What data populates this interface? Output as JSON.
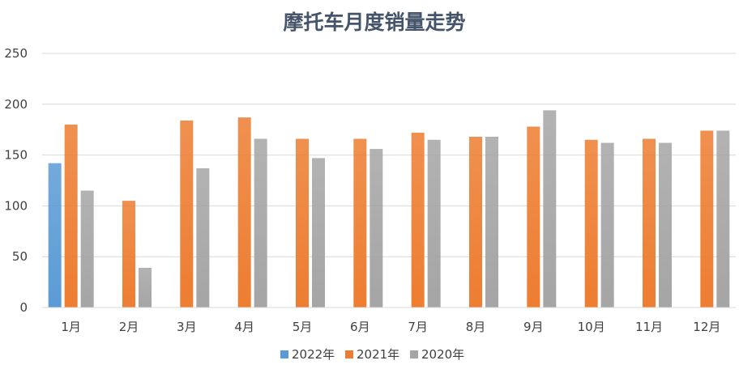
{
  "chart_data": {
    "type": "bar",
    "title": "摩托车月度销量走势",
    "xlabel": "",
    "ylabel": "",
    "categories": [
      "1月",
      "2月",
      "3月",
      "4月",
      "5月",
      "6月",
      "7月",
      "8月",
      "9月",
      "10月",
      "11月",
      "12月"
    ],
    "yticks": [
      "0",
      "50",
      "100",
      "150",
      "200",
      "250"
    ],
    "ylim": [
      0,
      250
    ],
    "grid": true,
    "legend_position": "bottom",
    "series": [
      {
        "name": "2022年",
        "color": "#5b9bd5",
        "values": [
          142,
          null,
          null,
          null,
          null,
          null,
          null,
          null,
          null,
          null,
          null,
          null
        ]
      },
      {
        "name": "2021年",
        "color": "#ed7d31",
        "values": [
          180,
          105,
          184,
          187,
          166,
          166,
          172,
          168,
          178,
          165,
          166,
          174
        ]
      },
      {
        "name": "2020年",
        "color": "#a5a5a5",
        "values": [
          115,
          39,
          137,
          166,
          147,
          156,
          165,
          168,
          194,
          162,
          162,
          174
        ]
      }
    ]
  }
}
